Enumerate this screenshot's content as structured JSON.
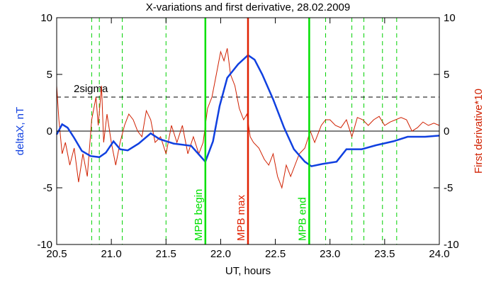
{
  "chart_data": {
    "type": "line",
    "title": "X-variations and first derivative, 28.02.2009",
    "x_label": "UT, hours",
    "y_label": "deltaX, nT",
    "y2_label": "First derivative*10",
    "xlim": [
      20.5,
      24.0
    ],
    "xticks": [
      20.5,
      {
        "value": 21,
        "label": "21.0"
      },
      21.5,
      {
        "value": 22,
        "label": "22.0"
      },
      22.5,
      {
        "value": 23,
        "label": "23.0"
      },
      23.5,
      {
        "value": 24,
        "label": "24.0"
      }
    ],
    "ylim": [
      -10,
      10
    ],
    "yticks": [
      -10,
      -5,
      0,
      5,
      10
    ],
    "y2lim": [
      -10,
      10
    ],
    "y2ticks": [
      -10,
      -5,
      0,
      5,
      10
    ],
    "baseline": 0,
    "threshold": {
      "value": 3,
      "label": "2sigma"
    },
    "dashed_lines": {
      "color": "#00d000",
      "x": [
        20.82,
        20.89,
        21.1,
        21.5,
        22.96,
        23.2,
        23.31,
        23.48,
        23.61
      ]
    },
    "markers": [
      {
        "x": 21.86,
        "label": "MPB begin",
        "color": "#00e000"
      },
      {
        "x": 22.25,
        "label": "MPB max",
        "color": "#e02000"
      },
      {
        "x": 22.81,
        "label": "MPB end",
        "color": "#00e000"
      }
    ],
    "series": [
      {
        "name": "deltaX",
        "color": "#1040e0",
        "axis": "y",
        "x": [
          20.5,
          20.55,
          20.6,
          20.66,
          20.73,
          20.81,
          20.89,
          20.95,
          21.02,
          21.08,
          21.15,
          21.25,
          21.36,
          21.44,
          21.57,
          21.73,
          21.86,
          21.93,
          21.99,
          22.06,
          22.16,
          22.25,
          22.31,
          22.38,
          22.48,
          22.58,
          22.67,
          22.77,
          22.83,
          22.93,
          23.06,
          23.15,
          23.29,
          23.42,
          23.58,
          23.71,
          23.87,
          24.0
        ],
        "values": [
          -0.3,
          0.6,
          0.3,
          -0.6,
          -1.75,
          -2.2,
          -2.3,
          -1.9,
          -0.9,
          -1.6,
          -1.7,
          -1.1,
          -0.2,
          -0.7,
          -1.1,
          -1.3,
          -2.7,
          -0.9,
          2.2,
          4.7,
          5.9,
          6.7,
          6.3,
          5.0,
          2.8,
          0.3,
          -1.6,
          -2.7,
          -3.1,
          -2.9,
          -2.7,
          -1.6,
          -1.6,
          -1.25,
          -0.9,
          -0.5,
          -0.5,
          -0.4
        ]
      },
      {
        "name": "First derivative*10",
        "color": "#d02000",
        "axis": "y2",
        "x": [
          20.5,
          20.52,
          20.55,
          20.58,
          20.62,
          20.66,
          20.7,
          20.74,
          20.78,
          20.82,
          20.86,
          20.88,
          20.91,
          20.93,
          20.96,
          21.0,
          21.04,
          21.08,
          21.12,
          21.16,
          21.2,
          21.24,
          21.28,
          21.32,
          21.36,
          21.4,
          21.45,
          21.5,
          21.55,
          21.6,
          21.65,
          21.7,
          21.75,
          21.8,
          21.84,
          21.88,
          21.92,
          21.96,
          22.0,
          22.03,
          22.06,
          22.09,
          22.13,
          22.17,
          22.21,
          22.24,
          22.27,
          22.3,
          22.35,
          22.4,
          22.44,
          22.48,
          22.52,
          22.56,
          22.6,
          22.64,
          22.68,
          22.72,
          22.77,
          22.82,
          22.86,
          22.92,
          22.96,
          23.0,
          23.05,
          23.1,
          23.15,
          23.2,
          23.25,
          23.3,
          23.35,
          23.4,
          23.45,
          23.5,
          23.55,
          23.6,
          23.65,
          23.7,
          23.75,
          23.8,
          23.85,
          23.9,
          23.95,
          24.0
        ],
        "values": [
          4,
          1,
          -2,
          -1,
          -3,
          -1.5,
          -4.5,
          -2,
          -4,
          1,
          3,
          0.5,
          4,
          -1,
          1.5,
          -1,
          -3,
          -1,
          0.5,
          1.5,
          1,
          0,
          -0.5,
          1.8,
          1,
          -1,
          -0.5,
          -2,
          0.5,
          -1,
          0.5,
          -2,
          -0.5,
          -2,
          -1,
          2,
          3,
          5,
          7,
          6.2,
          7.3,
          5,
          4,
          2,
          1,
          1.5,
          -0.5,
          -1,
          -1.5,
          -2.5,
          -3,
          -2,
          -4,
          -5,
          -3,
          -4,
          -3,
          -2,
          -1.5,
          0,
          -1,
          0.5,
          1,
          1,
          0.5,
          0.3,
          1,
          -0.5,
          1.2,
          1,
          0.5,
          1,
          1.3,
          0.5,
          0.8,
          1,
          1.2,
          1,
          0,
          0.3,
          0.8,
          0.5,
          0.7,
          0.5
        ]
      }
    ]
  }
}
